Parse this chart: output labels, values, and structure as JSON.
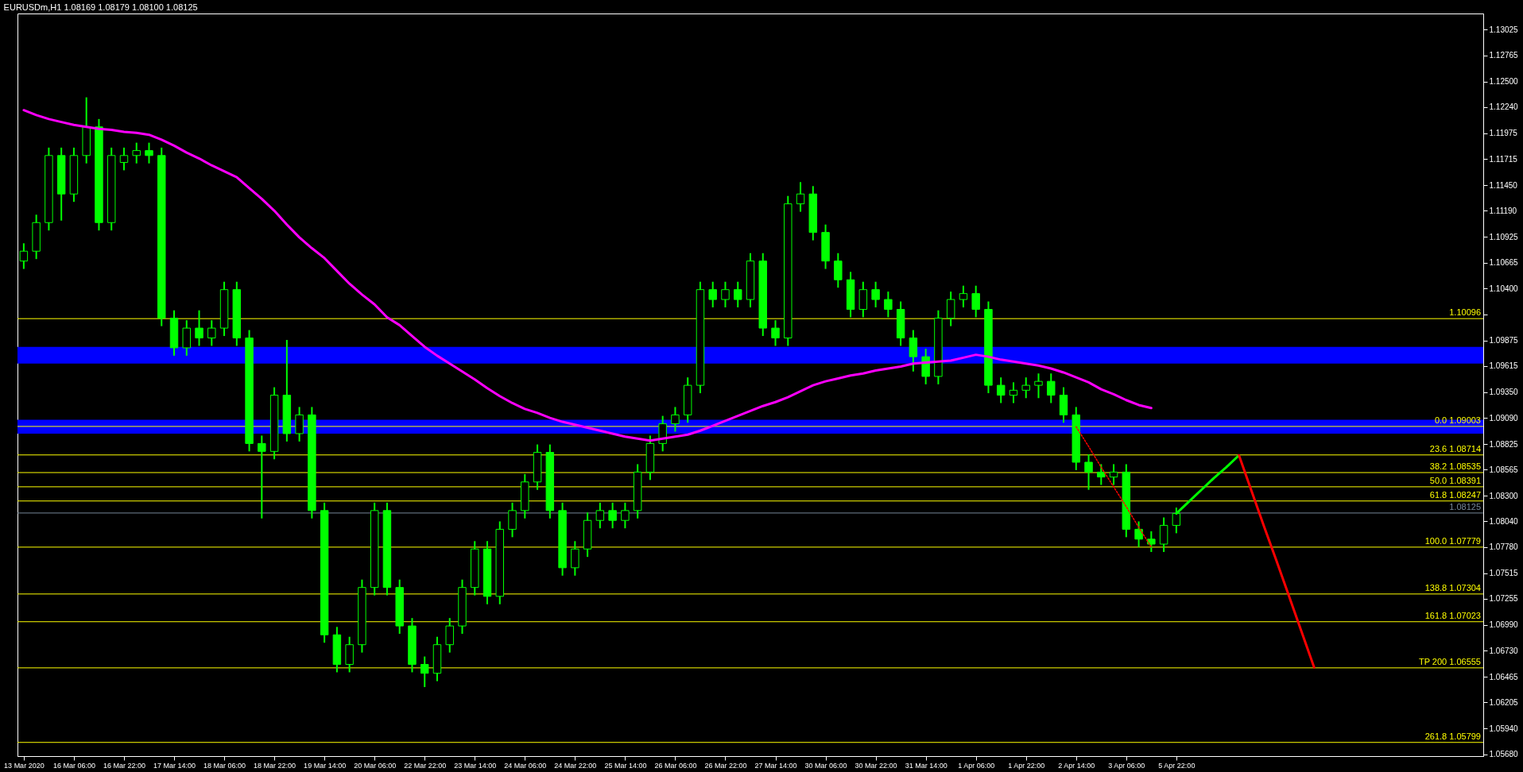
{
  "chart_data": {
    "type": "candlestick",
    "title": "EURUSDm,H1 1.08169 1.08179 1.08100 1.08125",
    "color": "#00ff00",
    "categories": [
      "13 Mar 2020",
      null,
      null,
      null,
      "16 Mar 06:00",
      null,
      null,
      null,
      "16 Mar 22:00",
      null,
      null,
      null,
      "17 Mar 14:00",
      null,
      null,
      null,
      "18 Mar 06:00",
      null,
      null,
      null,
      "18 Mar 22:00",
      null,
      null,
      null,
      "19 Mar 14:00",
      null,
      null,
      null,
      "20 Mar 06:00",
      null,
      null,
      null,
      "22 Mar 22:00",
      null,
      null,
      null,
      "23 Mar 14:00",
      null,
      null,
      null,
      "24 Mar 06:00",
      null,
      null,
      null,
      "24 Mar 22:00",
      null,
      null,
      null,
      "25 Mar 14:00",
      null,
      null,
      null,
      "26 Mar 06:00",
      null,
      null,
      null,
      "26 Mar 22:00",
      null,
      null,
      null,
      "27 Mar 14:00",
      null,
      null,
      null,
      "30 Mar 06:00",
      null,
      null,
      null,
      "30 Mar 22:00",
      null,
      null,
      null,
      "31 Mar 14:00",
      null,
      null,
      null,
      "1 Apr 06:00",
      null,
      null,
      null,
      "1 Apr 22:00",
      null,
      null,
      null,
      "2 Apr 14:00",
      null,
      null,
      null,
      "3 Apr 06:00",
      null,
      null,
      null,
      "5 Apr 22:00",
      null,
      null,
      null,
      null,
      null,
      null,
      null,
      null,
      null,
      null,
      null,
      null,
      null,
      null,
      null,
      null,
      null,
      null,
      null,
      null,
      null,
      null,
      null,
      null
    ],
    "ohlc": [
      [
        1.1068,
        1.1086,
        1.106,
        1.1078
      ],
      [
        1.1078,
        1.1115,
        1.107,
        1.1107
      ],
      [
        1.1107,
        1.1183,
        1.1099,
        1.1175
      ],
      [
        1.1175,
        1.1183,
        1.1109,
        1.1136
      ],
      [
        1.1136,
        1.1183,
        1.1128,
        1.1175
      ],
      [
        1.1175,
        1.1234,
        1.1167,
        1.1204
      ],
      [
        1.1204,
        1.1212,
        1.1099,
        1.1107
      ],
      [
        1.1107,
        1.1183,
        1.1099,
        1.1175
      ],
      [
        1.1168,
        1.1183,
        1.116,
        1.1175
      ],
      [
        1.1175,
        1.1188,
        1.1167,
        1.118
      ],
      [
        1.118,
        1.1188,
        1.1167,
        1.1175
      ],
      [
        1.1175,
        1.1183,
        1.1002,
        1.101
      ],
      [
        1.101,
        1.1018,
        1.0972,
        1.098
      ],
      [
        1.098,
        1.1008,
        1.0972,
        1.1
      ],
      [
        1.1,
        1.1018,
        1.0982,
        1.099
      ],
      [
        1.099,
        1.1008,
        1.0982,
        1.1
      ],
      [
        1.1,
        1.1047,
        1.0992,
        1.1039
      ],
      [
        1.1039,
        1.1047,
        1.0982,
        1.099
      ],
      [
        1.099,
        1.0998,
        1.0875,
        1.0883
      ],
      [
        1.0883,
        1.0891,
        1.0807,
        1.0875
      ],
      [
        1.0875,
        1.094,
        1.0867,
        1.0932
      ],
      [
        1.0932,
        1.0988,
        1.0885,
        1.0893
      ],
      [
        1.0893,
        1.092,
        1.0885,
        1.0912
      ],
      [
        1.0912,
        1.092,
        1.0807,
        1.0815
      ],
      [
        1.0815,
        1.0823,
        1.0681,
        1.0689
      ],
      [
        1.0689,
        1.0697,
        1.0651,
        1.0659
      ],
      [
        1.0659,
        1.0687,
        1.0651,
        1.0679
      ],
      [
        1.0679,
        1.0745,
        1.0671,
        1.0737
      ],
      [
        1.0737,
        1.0823,
        1.0729,
        1.0815
      ],
      [
        1.0815,
        1.0823,
        1.0729,
        1.0737
      ],
      [
        1.0737,
        1.0745,
        1.069,
        1.0698
      ],
      [
        1.0698,
        1.0706,
        1.0651,
        1.0659
      ],
      [
        1.0659,
        1.0667,
        1.0636,
        1.065
      ],
      [
        1.065,
        1.0687,
        1.0642,
        1.0679
      ],
      [
        1.0679,
        1.0706,
        1.0671,
        1.0698
      ],
      [
        1.0698,
        1.0745,
        1.069,
        1.0737
      ],
      [
        1.0737,
        1.0784,
        1.0729,
        1.0776
      ],
      [
        1.0776,
        1.0784,
        1.072,
        1.0728
      ],
      [
        1.0728,
        1.0804,
        1.072,
        1.0796
      ],
      [
        1.0796,
        1.0823,
        1.0788,
        1.0815
      ],
      [
        1.0815,
        1.0852,
        1.0807,
        1.0844
      ],
      [
        1.0844,
        1.0882,
        1.0836,
        1.0874
      ],
      [
        1.0874,
        1.0882,
        1.0807,
        1.0815
      ],
      [
        1.0815,
        1.0823,
        1.0749,
        1.0757
      ],
      [
        1.0757,
        1.0784,
        1.0749,
        1.0776
      ],
      [
        1.0776,
        1.0813,
        1.0768,
        1.0805
      ],
      [
        1.0805,
        1.0823,
        1.0797,
        1.0815
      ],
      [
        1.0815,
        1.0823,
        1.0797,
        1.0805
      ],
      [
        1.0805,
        1.0823,
        1.0797,
        1.0815
      ],
      [
        1.0815,
        1.0862,
        1.0807,
        1.0854
      ],
      [
        1.0854,
        1.0891,
        1.0846,
        1.0883
      ],
      [
        1.0883,
        1.0911,
        1.0875,
        1.0903
      ],
      [
        1.0903,
        1.092,
        1.0895,
        1.0912
      ],
      [
        1.0912,
        1.095,
        1.0904,
        1.0942
      ],
      [
        1.0942,
        1.1047,
        1.0934,
        1.1039
      ],
      [
        1.1039,
        1.1047,
        1.1021,
        1.1029
      ],
      [
        1.1029,
        1.1047,
        1.1021,
        1.1039
      ],
      [
        1.1039,
        1.1047,
        1.1021,
        1.1029
      ],
      [
        1.1029,
        1.1076,
        1.1021,
        1.1068
      ],
      [
        1.1068,
        1.1076,
        1.0992,
        1.1
      ],
      [
        1.1,
        1.1008,
        1.0982,
        1.099
      ],
      [
        1.099,
        1.1134,
        1.0982,
        1.1126
      ],
      [
        1.1126,
        1.1148,
        1.1118,
        1.1136
      ],
      [
        1.1136,
        1.1144,
        1.1089,
        1.1097
      ],
      [
        1.1097,
        1.1105,
        1.106,
        1.1068
      ],
      [
        1.1068,
        1.1076,
        1.1041,
        1.1049
      ],
      [
        1.1049,
        1.1057,
        1.1011,
        1.1019
      ],
      [
        1.1019,
        1.1047,
        1.1011,
        1.1039
      ],
      [
        1.1039,
        1.1047,
        1.1021,
        1.1029
      ],
      [
        1.1029,
        1.1037,
        1.1011,
        1.1019
      ],
      [
        1.1019,
        1.1027,
        1.0982,
        1.099
      ],
      [
        1.099,
        1.0998,
        1.0956,
        1.0971
      ],
      [
        1.0971,
        1.0979,
        1.0943,
        1.0951
      ],
      [
        1.0951,
        1.1018,
        1.0943,
        1.101
      ],
      [
        1.101,
        1.1037,
        1.1002,
        1.1029
      ],
      [
        1.1029,
        1.1043,
        1.1021,
        1.1035
      ],
      [
        1.1035,
        1.1043,
        1.1011,
        1.1019
      ],
      [
        1.1019,
        1.1027,
        1.0934,
        1.0942
      ],
      [
        1.0942,
        1.095,
        1.0924,
        1.0932
      ],
      [
        1.0932,
        1.0945,
        1.0924,
        1.0937
      ],
      [
        1.0937,
        1.095,
        1.0929,
        1.0942
      ],
      [
        1.0942,
        1.0954,
        1.0929,
        1.0946
      ],
      [
        1.0946,
        1.0954,
        1.0924,
        1.0932
      ],
      [
        1.0932,
        1.094,
        1.0904,
        1.0912
      ],
      [
        1.0912,
        1.092,
        1.0856,
        1.0864
      ],
      [
        1.0864,
        1.0872,
        1.0836,
        1.0854
      ],
      [
        1.0854,
        1.0862,
        1.0841,
        1.0849
      ],
      [
        1.0849,
        1.0862,
        1.0841,
        1.0854
      ],
      [
        1.0854,
        1.0862,
        1.0788,
        1.0796
      ],
      [
        1.0796,
        1.0804,
        1.0778,
        1.0786
      ],
      [
        1.0786,
        1.0794,
        1.0773,
        1.0781
      ],
      [
        1.0781,
        1.0808,
        1.0773,
        1.08
      ],
      [
        1.08,
        1.0818,
        1.0792,
        1.0812
      ],
      null,
      null,
      null,
      null,
      null,
      null,
      null,
      null,
      null,
      null,
      null,
      null,
      null,
      null,
      null,
      null,
      null,
      null,
      null,
      null,
      null,
      null,
      null,
      null
    ],
    "series": [
      {
        "type": "line",
        "color": "#ff00ff",
        "values": [
          1.1221,
          1.1216,
          1.1212,
          1.1209,
          1.1206,
          1.1204,
          1.1202,
          1.1201,
          1.1199,
          1.1198,
          1.1196,
          1.1191,
          1.1185,
          1.1178,
          1.1172,
          1.1165,
          1.1159,
          1.1153,
          1.1142,
          1.1131,
          1.1119,
          1.1105,
          1.1092,
          1.1081,
          1.1071,
          1.1058,
          1.1045,
          1.1034,
          1.1024,
          1.1011,
          1.1003,
          1.0992,
          1.0981,
          1.0972,
          1.0964,
          1.0956,
          1.0948,
          1.0939,
          1.0931,
          1.0924,
          1.0918,
          1.0914,
          1.0909,
          1.0905,
          1.0902,
          1.0899,
          1.0896,
          1.0893,
          1.089,
          1.0888,
          1.0886,
          1.0888,
          1.089,
          1.0892,
          1.0896,
          1.0901,
          1.0906,
          1.0911,
          1.0916,
          1.0921,
          1.0925,
          1.093,
          1.0936,
          1.0942,
          1.0946,
          1.0949,
          1.0952,
          1.0954,
          1.0957,
          1.0959,
          1.0961,
          1.0964,
          1.0965,
          1.0966,
          1.0967,
          1.097,
          1.0973,
          1.0971,
          1.0968,
          1.0966,
          1.0964,
          1.0962,
          1.0959,
          1.0955,
          1.095,
          1.0945,
          1.0938,
          1.0933,
          1.0927,
          1.0922,
          1.0919,
          null,
          null,
          null,
          null,
          null,
          null,
          null,
          null,
          null,
          null,
          null,
          null,
          null,
          null,
          null,
          null,
          null,
          null,
          null,
          null,
          null,
          null,
          null,
          null,
          null,
          null
        ]
      },
      {
        "type": "line",
        "color": "#00ff00",
        "values": [
          null,
          null,
          null,
          null,
          null,
          null,
          null,
          null,
          null,
          null,
          null,
          null,
          null,
          null,
          null,
          null,
          null,
          null,
          null,
          null,
          null,
          null,
          null,
          null,
          null,
          null,
          null,
          null,
          null,
          null,
          null,
          null,
          null,
          null,
          null,
          null,
          null,
          null,
          null,
          null,
          null,
          null,
          null,
          null,
          null,
          null,
          null,
          null,
          null,
          null,
          null,
          null,
          null,
          null,
          null,
          null,
          null,
          null,
          null,
          null,
          null,
          null,
          null,
          null,
          null,
          null,
          null,
          null,
          null,
          null,
          null,
          null,
          null,
          null,
          null,
          null,
          null,
          null,
          null,
          null,
          null,
          null,
          null,
          null,
          null,
          null,
          null,
          null,
          null,
          null,
          null,
          null,
          1.0812,
          1.0824,
          1.0836,
          1.0848,
          1.0859,
          1.0871,
          null,
          null,
          null,
          null,
          null,
          null,
          null,
          null,
          null,
          null,
          null,
          null,
          null,
          null,
          null,
          null,
          null,
          null,
          null
        ]
      },
      {
        "type": "line",
        "color": "#ff0000",
        "values": [
          null,
          null,
          null,
          null,
          null,
          null,
          null,
          null,
          null,
          null,
          null,
          null,
          null,
          null,
          null,
          null,
          null,
          null,
          null,
          null,
          null,
          null,
          null,
          null,
          null,
          null,
          null,
          null,
          null,
          null,
          null,
          null,
          null,
          null,
          null,
          null,
          null,
          null,
          null,
          null,
          null,
          null,
          null,
          null,
          null,
          null,
          null,
          null,
          null,
          null,
          null,
          null,
          null,
          null,
          null,
          null,
          null,
          null,
          null,
          null,
          null,
          null,
          null,
          null,
          null,
          null,
          null,
          null,
          null,
          null,
          null,
          null,
          null,
          null,
          null,
          null,
          null,
          null,
          null,
          null,
          null,
          null,
          null,
          null,
          null,
          null,
          null,
          null,
          null,
          null,
          null,
          null,
          null,
          null,
          null,
          null,
          null,
          1.0871,
          1.0835,
          1.0799,
          1.0764,
          1.0728,
          1.0692,
          1.0656,
          null,
          null,
          null,
          null,
          null,
          null,
          null,
          null,
          null,
          null,
          null,
          null,
          null
        ]
      },
      {
        "type": "line",
        "color": "#ff0000",
        "line_style": "dotted",
        "values": [
          null,
          null,
          null,
          null,
          null,
          null,
          null,
          null,
          null,
          null,
          null,
          null,
          null,
          null,
          null,
          null,
          null,
          null,
          null,
          null,
          null,
          null,
          null,
          null,
          null,
          null,
          null,
          null,
          null,
          null,
          null,
          null,
          null,
          null,
          null,
          null,
          null,
          null,
          null,
          null,
          null,
          null,
          null,
          null,
          null,
          null,
          null,
          null,
          null,
          null,
          null,
          null,
          null,
          null,
          null,
          null,
          null,
          null,
          null,
          null,
          null,
          null,
          null,
          null,
          null,
          null,
          null,
          null,
          null,
          null,
          null,
          null,
          null,
          null,
          null,
          null,
          null,
          null,
          null,
          null,
          null,
          null,
          null,
          null,
          1.09,
          1.088,
          1.0859,
          1.0839,
          1.0819,
          1.0798,
          1.0778,
          null,
          null,
          null,
          null,
          null,
          null,
          null,
          null,
          null,
          null,
          null,
          null,
          null,
          null,
          null,
          null,
          null,
          null,
          null,
          null,
          null,
          null,
          null,
          null,
          null,
          null
        ]
      }
    ],
    "ref_lines": [
      {
        "axis": "y",
        "value": 1.10096,
        "label": "1.10096",
        "color": "#ffff00"
      },
      {
        "axis": "y",
        "value": 1.08125,
        "label": "1.08125",
        "color": "#778899"
      },
      {
        "axis": "y",
        "value": 1.09003,
        "label": "0.0 1.09003",
        "color": "#ffff00"
      },
      {
        "axis": "y",
        "value": 1.08714,
        "label": "23.6 1.08714",
        "color": "#ffff00"
      },
      {
        "axis": "y",
        "value": 1.08535,
        "label": "38.2 1.08535",
        "color": "#ffff00"
      },
      {
        "axis": "y",
        "value": 1.08391,
        "label": "50.0 1.08391",
        "color": "#ffff00"
      },
      {
        "axis": "y",
        "value": 1.08247,
        "label": "61.8 1.08247",
        "color": "#ffff00"
      },
      {
        "axis": "y",
        "value": 1.07779,
        "label": "100.0 1.07779",
        "color": "#ffff00"
      },
      {
        "axis": "y",
        "value": 1.07304,
        "label": "138.8 1.07304",
        "color": "#ffff00"
      },
      {
        "axis": "y",
        "value": 1.07023,
        "label": "161.8 1.07023",
        "color": "#ffff00"
      },
      {
        "axis": "y",
        "value": 1.06555,
        "label": "TP 200 1.06555",
        "color": "#ffff00"
      },
      {
        "axis": "y",
        "value": 1.05799,
        "label": "261.8 1.05799",
        "color": "#ffff00"
      }
    ],
    "bands": [
      {
        "axis": "y",
        "from": 1.0964,
        "to": 1.0981,
        "color": "#0000ff"
      },
      {
        "axis": "y",
        "from": 1.0893,
        "to": 1.0907,
        "color": "#0000ff"
      }
    ],
    "ylim": [
      1.0566,
      1.1319
    ],
    "yticks": [
      1.13025,
      1.12765,
      {
        "value": 1.125,
        "label": "1.12500"
      },
      {
        "value": 1.1224,
        "label": "1.12240"
      },
      1.11975,
      1.11715,
      {
        "value": 1.1145,
        "label": "1.11450"
      },
      {
        "value": 1.1119,
        "label": "1.11190"
      },
      1.10925,
      1.10665,
      {
        "value": 1.104,
        "label": "1.10400"
      },
      {
        "value": 1.1014,
        "label": null
      },
      1.09875,
      1.09615,
      {
        "value": 1.0935,
        "label": "1.09350"
      },
      {
        "value": 1.0909,
        "label": "1.09090"
      },
      1.08825,
      1.08565,
      {
        "value": 1.083,
        "label": "1.08300"
      },
      {
        "value": 1.0804,
        "label": "1.08040"
      },
      {
        "value": 1.0778,
        "label": "1.07780"
      },
      1.07515,
      1.07255,
      {
        "value": 1.0699,
        "label": "1.06990"
      },
      {
        "value": 1.0673,
        "label": "1.06730"
      },
      1.06465,
      1.06205,
      {
        "value": 1.0594,
        "label": "1.05940"
      },
      {
        "value": 1.0568,
        "label": "1.05680"
      }
    ],
    "grid": false
  }
}
